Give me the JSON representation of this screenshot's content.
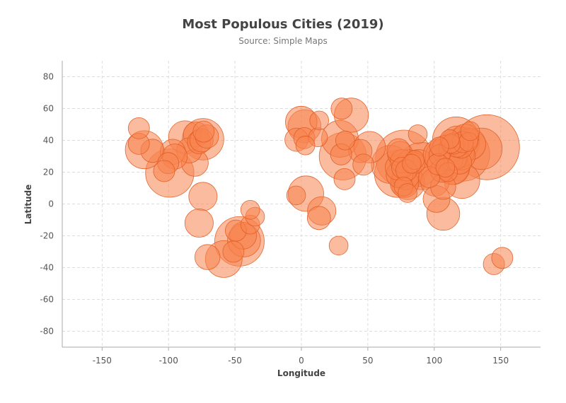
{
  "chart_data": {
    "type": "scatter",
    "title": "Most Populous Cities (2019)",
    "subtitle": "Source: Simple Maps",
    "xlabel": "Longitude",
    "ylabel": "Latitude",
    "xlim": [
      -180,
      180
    ],
    "ylim": [
      -90,
      90
    ],
    "x_ticks": [
      -150,
      -100,
      -50,
      0,
      50,
      100,
      150
    ],
    "y_ticks": [
      -80,
      -60,
      -40,
      -20,
      0,
      20,
      40,
      60,
      80
    ],
    "grid": true,
    "legend": "none",
    "colors": {
      "fill": "#f8834f",
      "stroke": "#e05a20"
    },
    "points": [
      {
        "x": 139.7,
        "y": 35.7,
        "size": 38
      },
      {
        "x": 77.2,
        "y": 28.6,
        "size": 29
      },
      {
        "x": 121.5,
        "y": 31.2,
        "size": 26
      },
      {
        "x": -46.6,
        "y": -23.5,
        "size": 22
      },
      {
        "x": -99.1,
        "y": 19.4,
        "size": 21
      },
      {
        "x": 31.2,
        "y": 30.0,
        "size": 20
      },
      {
        "x": 72.8,
        "y": 19.0,
        "size": 20
      },
      {
        "x": 116.4,
        "y": 39.9,
        "size": 20
      },
      {
        "x": 90.4,
        "y": 23.8,
        "size": 20
      },
      {
        "x": 135.5,
        "y": 34.7,
        "size": 19
      },
      {
        "x": -74.0,
        "y": 40.7,
        "size": 19
      },
      {
        "x": 67.0,
        "y": 24.9,
        "size": 16
      },
      {
        "x": 88.4,
        "y": 22.6,
        "size": 15
      },
      {
        "x": 29.0,
        "y": 41.0,
        "size": 15
      },
      {
        "x": 3.4,
        "y": 6.5,
        "size": 14
      },
      {
        "x": -58.4,
        "y": -34.6,
        "size": 15
      },
      {
        "x": 106.6,
        "y": 29.6,
        "size": 14
      },
      {
        "x": 120.9,
        "y": 14.6,
        "size": 14
      },
      {
        "x": 113.3,
        "y": 23.1,
        "size": 13
      },
      {
        "x": 114.1,
        "y": 22.6,
        "size": 12
      },
      {
        "x": 80.3,
        "y": 13.1,
        "size": 12
      },
      {
        "x": 104.1,
        "y": 30.7,
        "size": 12
      },
      {
        "x": 117.2,
        "y": 39.1,
        "size": 11
      },
      {
        "x": -118.2,
        "y": 34.1,
        "size": 16
      },
      {
        "x": 37.6,
        "y": 55.8,
        "size": 13
      },
      {
        "x": -43.2,
        "y": -22.9,
        "size": 12
      },
      {
        "x": 2.3,
        "y": 48.9,
        "size": 12
      },
      {
        "x": -0.1,
        "y": 51.5,
        "size": 11
      },
      {
        "x": 106.8,
        "y": -6.2,
        "size": 12
      },
      {
        "x": 51.4,
        "y": 35.7,
        "size": 11
      },
      {
        "x": 126.9,
        "y": 37.6,
        "size": 11
      },
      {
        "x": 114.3,
        "y": 30.6,
        "size": 10
      },
      {
        "x": 118.8,
        "y": 32.1,
        "size": 10
      },
      {
        "x": 120.2,
        "y": 30.3,
        "size": 9
      },
      {
        "x": 108.9,
        "y": 34.3,
        "size": 9
      },
      {
        "x": 123.4,
        "y": 41.8,
        "size": 8
      },
      {
        "x": 113.6,
        "y": 34.7,
        "size": 8
      },
      {
        "x": 101.7,
        "y": 3.1,
        "size": 8
      },
      {
        "x": 100.5,
        "y": 13.8,
        "size": 9
      },
      {
        "x": 77.6,
        "y": 12.97,
        "size": 9
      },
      {
        "x": 78.5,
        "y": 17.4,
        "size": 8
      },
      {
        "x": 73.9,
        "y": 18.5,
        "size": 8
      },
      {
        "x": -87.6,
        "y": 41.9,
        "size": 12
      },
      {
        "x": -79.4,
        "y": 43.7,
        "size": 7
      },
      {
        "x": -77.0,
        "y": 38.9,
        "size": 6
      },
      {
        "x": -75.2,
        "y": 40.0,
        "size": 6
      },
      {
        "x": -71.1,
        "y": 42.4,
        "size": 6
      },
      {
        "x": -73.6,
        "y": 45.5,
        "size": 5
      },
      {
        "x": -84.4,
        "y": 33.7,
        "size": 7
      },
      {
        "x": -96.8,
        "y": 32.8,
        "size": 7
      },
      {
        "x": -95.4,
        "y": 29.8,
        "size": 7
      },
      {
        "x": -80.2,
        "y": 25.8,
        "size": 8
      },
      {
        "x": -122.4,
        "y": 37.8,
        "size": 5
      },
      {
        "x": -122.3,
        "y": 47.6,
        "size": 5
      },
      {
        "x": -112.1,
        "y": 33.4,
        "size": 6
      },
      {
        "x": -100.3,
        "y": 25.7,
        "size": 5
      },
      {
        "x": -103.3,
        "y": 20.7,
        "size": 5
      },
      {
        "x": -74.1,
        "y": 4.7,
        "size": 9
      },
      {
        "x": -77.0,
        "y": -12.0,
        "size": 9
      },
      {
        "x": -70.7,
        "y": -33.4,
        "size": 7
      },
      {
        "x": -49.3,
        "y": -16.7,
        "size": 5
      },
      {
        "x": -43.9,
        "y": -19.9,
        "size": 8
      },
      {
        "x": -51.2,
        "y": -30.0,
        "size": 5
      },
      {
        "x": -38.5,
        "y": -12.97,
        "size": 4
      },
      {
        "x": -34.9,
        "y": -8.0,
        "size": 4
      },
      {
        "x": -38.5,
        "y": -3.7,
        "size": 4
      },
      {
        "x": 15.3,
        "y": -4.3,
        "size": 9
      },
      {
        "x": 13.2,
        "y": -8.8,
        "size": 6
      },
      {
        "x": 28.0,
        "y": -26.2,
        "size": 4
      },
      {
        "x": 32.5,
        "y": 15.6,
        "size": 5
      },
      {
        "x": 44.4,
        "y": 33.3,
        "size": 6
      },
      {
        "x": 46.7,
        "y": 24.7,
        "size": 5
      },
      {
        "x": 30.3,
        "y": 59.9,
        "size": 5
      },
      {
        "x": 2.2,
        "y": 41.4,
        "size": 5
      },
      {
        "x": -3.7,
        "y": 40.4,
        "size": 6
      },
      {
        "x": 12.5,
        "y": 41.9,
        "size": 4
      },
      {
        "x": 3.0,
        "y": 36.8,
        "size": 4
      },
      {
        "x": 13.4,
        "y": 52.5,
        "size": 4
      },
      {
        "x": -4.0,
        "y": 5.4,
        "size": 4
      },
      {
        "x": 32.9,
        "y": 39.9,
        "size": 4
      },
      {
        "x": 29.9,
        "y": 31.2,
        "size": 5
      },
      {
        "x": 144.9,
        "y": -37.8,
        "size": 5
      },
      {
        "x": 151.2,
        "y": -33.9,
        "size": 5
      },
      {
        "x": 105.8,
        "y": 21.0,
        "size": 6
      },
      {
        "x": 106.7,
        "y": 10.8,
        "size": 7
      },
      {
        "x": 96.2,
        "y": 16.9,
        "size": 5
      },
      {
        "x": 125.8,
        "y": 39.0,
        "size": 4
      },
      {
        "x": 127.0,
        "y": 45.8,
        "size": 4
      },
      {
        "x": 104.0,
        "y": 30.6,
        "size": 5
      },
      {
        "x": 102.7,
        "y": 25.0,
        "size": 5
      },
      {
        "x": 110.3,
        "y": 20.0,
        "size": 4
      },
      {
        "x": 108.3,
        "y": 22.8,
        "size": 4
      },
      {
        "x": 112.9,
        "y": 28.2,
        "size": 6
      },
      {
        "x": 115.9,
        "y": 28.7,
        "size": 6
      },
      {
        "x": 119.3,
        "y": 26.1,
        "size": 6
      },
      {
        "x": 120.4,
        "y": 36.1,
        "size": 6
      },
      {
        "x": 117.0,
        "y": 36.7,
        "size": 6
      },
      {
        "x": 114.5,
        "y": 38.0,
        "size": 5
      },
      {
        "x": 112.5,
        "y": 37.9,
        "size": 4
      },
      {
        "x": 121.6,
        "y": 38.9,
        "size": 5
      },
      {
        "x": 111.7,
        "y": 40.8,
        "size": 4
      },
      {
        "x": 103.8,
        "y": 36.1,
        "size": 4
      },
      {
        "x": 87.6,
        "y": 43.8,
        "size": 4
      },
      {
        "x": 85.3,
        "y": 27.7,
        "size": 4
      },
      {
        "x": 75.9,
        "y": 22.7,
        "size": 5
      },
      {
        "x": 72.6,
        "y": 23.0,
        "size": 7
      },
      {
        "x": 80.9,
        "y": 26.8,
        "size": 6
      },
      {
        "x": 83.0,
        "y": 25.3,
        "size": 4
      },
      {
        "x": 85.1,
        "y": 25.6,
        "size": 5
      },
      {
        "x": 75.8,
        "y": 26.9,
        "size": 6
      },
      {
        "x": 74.3,
        "y": 31.5,
        "size": 7
      },
      {
        "x": 73.1,
        "y": 33.7,
        "size": 6
      },
      {
        "x": 79.1,
        "y": 21.1,
        "size": 5
      },
      {
        "x": 76.9,
        "y": 11.0,
        "size": 4
      },
      {
        "x": 79.9,
        "y": 6.9,
        "size": 4
      }
    ]
  }
}
